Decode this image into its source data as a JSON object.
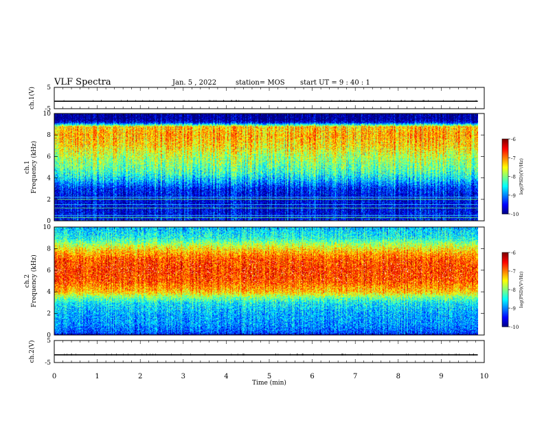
{
  "header": {
    "title": "VLF Spectra",
    "date": "Jan. 5 , 2022",
    "station": "station= MOS",
    "start": "start UT =  9 : 40 : 1"
  },
  "chart_data": [
    {
      "type": "line",
      "panel": "ch1-waveform",
      "ylabel": "ch.1(V)",
      "ylim": [
        -5,
        5
      ],
      "yticks": [
        "5",
        "-5"
      ],
      "series": [
        {
          "x": [
            0,
            9.85
          ],
          "y": [
            -1.5,
            -1.5
          ]
        }
      ]
    },
    {
      "type": "heatmap",
      "panel": "ch1-spectrogram",
      "ylabel": "ch.1 Frequency (kHz)",
      "ylim": [
        0,
        10
      ],
      "yticks": [
        "0",
        "2",
        "4",
        "6",
        "8",
        "10"
      ],
      "x_extent_min": [
        0,
        9.85
      ],
      "profile_khz": [
        0,
        1,
        2,
        3,
        3.5,
        4,
        4.5,
        5,
        6,
        7,
        8,
        8.8,
        9.2,
        9.5,
        10
      ],
      "profile_level": [
        -9.5,
        -9.6,
        -9.6,
        -9.4,
        -9.0,
        -8.6,
        -8.3,
        -8.1,
        -7.8,
        -7.4,
        -7.2,
        -7.3,
        -9.6,
        -10,
        -10
      ],
      "hlines_khz": [
        0.3,
        0.5,
        1.2,
        1.5,
        2.0,
        2.2
      ],
      "colorbar": {
        "label": "log(PSD)(V²/Hz)",
        "range": [
          -10,
          -6
        ],
        "ticks": [
          "-6",
          "-7",
          "-8",
          "-9",
          "-10"
        ]
      }
    },
    {
      "type": "heatmap",
      "panel": "ch2-spectrogram",
      "ylabel": "ch.2 Frequency (kHz)",
      "ylim": [
        0,
        10
      ],
      "yticks": [
        "0",
        "2",
        "4",
        "6",
        "8",
        "10"
      ],
      "x_extent_min": [
        0,
        9.85
      ],
      "profile_khz": [
        0,
        0.2,
        1,
        2,
        3,
        3.5,
        4,
        5,
        6,
        7,
        7.7,
        8.2,
        9,
        10
      ],
      "profile_level": [
        -10,
        -9.2,
        -8.9,
        -8.8,
        -8.5,
        -8.0,
        -7.3,
        -6.8,
        -6.7,
        -6.8,
        -7.2,
        -7.6,
        -8.4,
        -8.7
      ],
      "colorbar": {
        "label": "log(PSD)(V²/Hz)",
        "range": [
          -10,
          -6
        ],
        "ticks": [
          "-6",
          "-7",
          "-8",
          "-9",
          "-10"
        ]
      }
    },
    {
      "type": "line",
      "panel": "ch2-waveform",
      "ylabel": "ch.2(V)",
      "ylim": [
        -5,
        5
      ],
      "yticks": [
        "5",
        "-5"
      ],
      "series": [
        {
          "x": [
            0,
            9.85
          ],
          "y": [
            -1.5,
            -1.5
          ]
        }
      ]
    }
  ],
  "xaxis": {
    "label": "Time (min)",
    "range": [
      0,
      10
    ],
    "ticks": [
      "0",
      "1",
      "2",
      "3",
      "4",
      "5",
      "6",
      "7",
      "8",
      "9",
      "10"
    ]
  }
}
